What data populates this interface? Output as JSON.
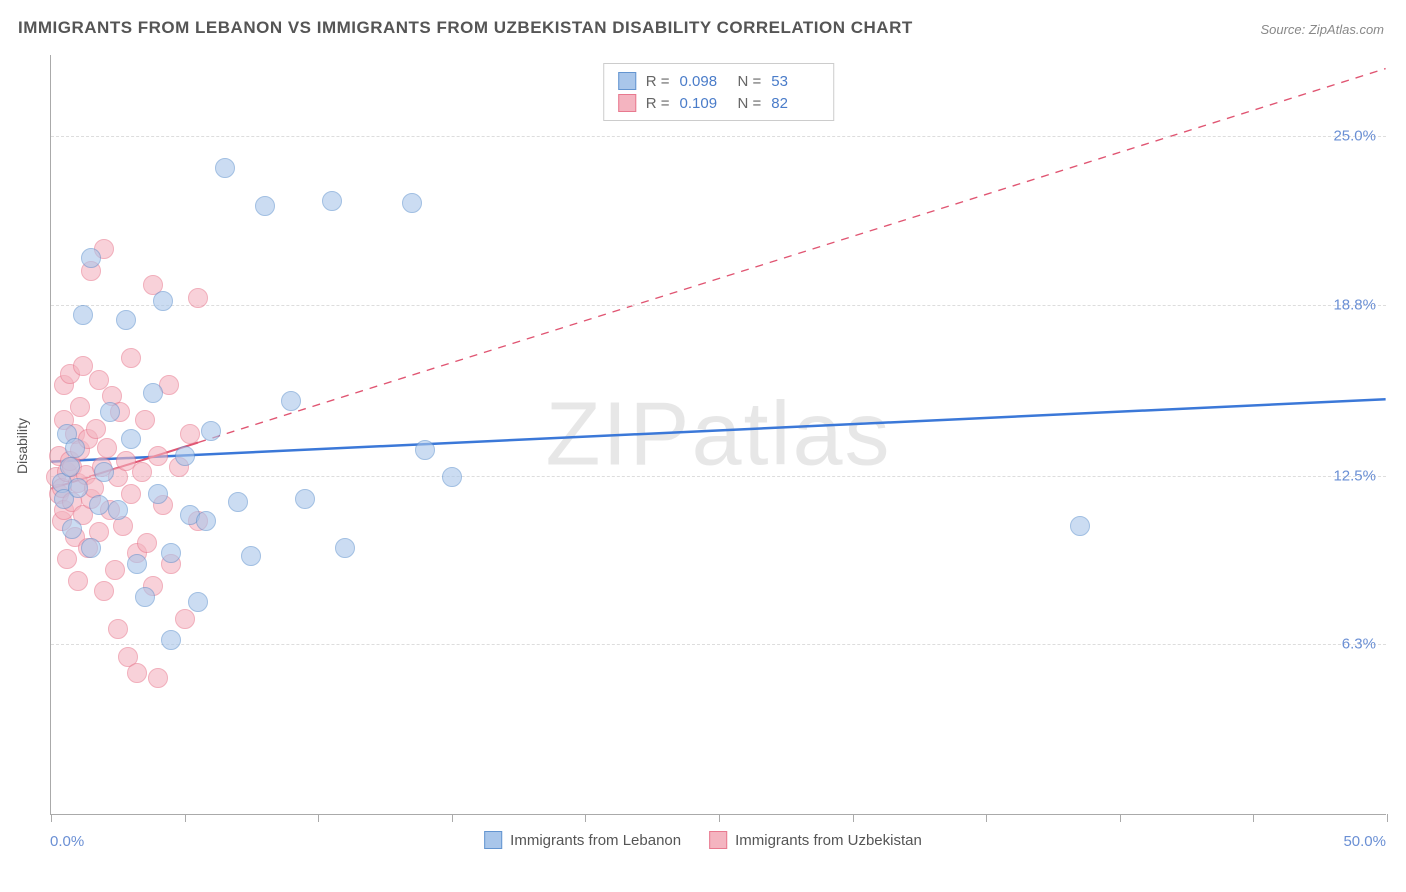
{
  "title": "IMMIGRANTS FROM LEBANON VS IMMIGRANTS FROM UZBEKISTAN DISABILITY CORRELATION CHART",
  "source": "Source: ZipAtlas.com",
  "watermark": "ZIPatlas",
  "y_axis_label": "Disability",
  "chart": {
    "type": "scatter-correlation",
    "xlim": [
      0,
      50
    ],
    "ylim": [
      0,
      28
    ],
    "x_tick_positions": [
      0,
      5,
      10,
      15,
      20,
      25,
      30,
      35,
      40,
      45,
      50
    ],
    "x_range_labels": {
      "min": "0.0%",
      "max": "50.0%"
    },
    "y_gridlines": [
      {
        "value": 6.3,
        "label": "6.3%"
      },
      {
        "value": 12.5,
        "label": "12.5%"
      },
      {
        "value": 18.8,
        "label": "18.8%"
      },
      {
        "value": 25.0,
        "label": "25.0%"
      }
    ],
    "marker_radius": 10,
    "background_color": "#ffffff",
    "grid_color": "#dddddd",
    "axis_color": "#aaaaaa",
    "series": [
      {
        "name": "Immigrants from Lebanon",
        "fill": "#a9c6ea",
        "stroke": "#6495d0",
        "fill_opacity": 0.6,
        "trend": {
          "x1": 0,
          "y1": 13.0,
          "x2": 50,
          "y2": 15.3,
          "solid_until_x": 50,
          "stroke": "#3b78d8",
          "width": 2.5
        },
        "R": "0.098",
        "N": "53",
        "points": [
          [
            0.4,
            12.2
          ],
          [
            0.5,
            11.6
          ],
          [
            0.6,
            14.0
          ],
          [
            0.7,
            12.8
          ],
          [
            0.8,
            10.5
          ],
          [
            0.9,
            13.5
          ],
          [
            1.0,
            12.0
          ],
          [
            1.2,
            18.4
          ],
          [
            1.5,
            20.5
          ],
          [
            1.5,
            9.8
          ],
          [
            1.8,
            11.4
          ],
          [
            2.0,
            12.6
          ],
          [
            2.2,
            14.8
          ],
          [
            2.5,
            11.2
          ],
          [
            2.8,
            18.2
          ],
          [
            3.0,
            13.8
          ],
          [
            3.2,
            9.2
          ],
          [
            3.5,
            8.0
          ],
          [
            3.8,
            15.5
          ],
          [
            4.0,
            11.8
          ],
          [
            4.2,
            18.9
          ],
          [
            4.5,
            9.6
          ],
          [
            4.5,
            6.4
          ],
          [
            5.0,
            13.2
          ],
          [
            5.2,
            11.0
          ],
          [
            5.5,
            7.8
          ],
          [
            5.8,
            10.8
          ],
          [
            6.0,
            14.1
          ],
          [
            6.5,
            23.8
          ],
          [
            7.0,
            11.5
          ],
          [
            7.5,
            9.5
          ],
          [
            8.0,
            22.4
          ],
          [
            9.0,
            15.2
          ],
          [
            9.5,
            11.6
          ],
          [
            10.5,
            22.6
          ],
          [
            11.0,
            9.8
          ],
          [
            13.5,
            22.5
          ],
          [
            14.0,
            13.4
          ],
          [
            15.0,
            12.4
          ],
          [
            38.5,
            10.6
          ]
        ]
      },
      {
        "name": "Immigrants from Uzbekistan",
        "fill": "#f4b4c0",
        "stroke": "#e8798f",
        "fill_opacity": 0.6,
        "trend": {
          "x1": 0,
          "y1": 12.0,
          "x2": 50,
          "y2": 27.5,
          "solid_until_x": 5.5,
          "stroke": "#e05572",
          "width": 2
        },
        "R": "0.109",
        "N": "82",
        "points": [
          [
            0.2,
            12.4
          ],
          [
            0.3,
            11.8
          ],
          [
            0.3,
            13.2
          ],
          [
            0.4,
            12.0
          ],
          [
            0.4,
            10.8
          ],
          [
            0.5,
            14.5
          ],
          [
            0.5,
            11.2
          ],
          [
            0.5,
            15.8
          ],
          [
            0.6,
            12.6
          ],
          [
            0.6,
            9.4
          ],
          [
            0.7,
            13.0
          ],
          [
            0.7,
            16.2
          ],
          [
            0.8,
            11.5
          ],
          [
            0.8,
            12.8
          ],
          [
            0.9,
            10.2
          ],
          [
            0.9,
            14.0
          ],
          [
            1.0,
            12.2
          ],
          [
            1.0,
            8.6
          ],
          [
            1.1,
            13.4
          ],
          [
            1.1,
            15.0
          ],
          [
            1.2,
            11.0
          ],
          [
            1.2,
            16.5
          ],
          [
            1.3,
            12.5
          ],
          [
            1.4,
            9.8
          ],
          [
            1.4,
            13.8
          ],
          [
            1.5,
            11.6
          ],
          [
            1.5,
            20.0
          ],
          [
            1.6,
            12.0
          ],
          [
            1.7,
            14.2
          ],
          [
            1.8,
            10.4
          ],
          [
            1.8,
            16.0
          ],
          [
            1.9,
            12.8
          ],
          [
            2.0,
            8.2
          ],
          [
            2.0,
            20.8
          ],
          [
            2.1,
            13.5
          ],
          [
            2.2,
            11.2
          ],
          [
            2.3,
            15.4
          ],
          [
            2.4,
            9.0
          ],
          [
            2.5,
            12.4
          ],
          [
            2.5,
            6.8
          ],
          [
            2.6,
            14.8
          ],
          [
            2.7,
            10.6
          ],
          [
            2.8,
            13.0
          ],
          [
            2.9,
            5.8
          ],
          [
            3.0,
            11.8
          ],
          [
            3.0,
            16.8
          ],
          [
            3.2,
            9.6
          ],
          [
            3.2,
            5.2
          ],
          [
            3.4,
            12.6
          ],
          [
            3.5,
            14.5
          ],
          [
            3.6,
            10.0
          ],
          [
            3.8,
            8.4
          ],
          [
            3.8,
            19.5
          ],
          [
            4.0,
            13.2
          ],
          [
            4.0,
            5.0
          ],
          [
            4.2,
            11.4
          ],
          [
            4.4,
            15.8
          ],
          [
            4.5,
            9.2
          ],
          [
            4.8,
            12.8
          ],
          [
            5.0,
            7.2
          ],
          [
            5.2,
            14.0
          ],
          [
            5.5,
            10.8
          ],
          [
            5.5,
            19.0
          ]
        ]
      }
    ]
  },
  "legend_top": {
    "rows": [
      {
        "swatch_fill": "#a9c6ea",
        "swatch_stroke": "#6495d0",
        "r_label": "R =",
        "r_val": "0.098",
        "n_label": "N =",
        "n_val": "53"
      },
      {
        "swatch_fill": "#f4b4c0",
        "swatch_stroke": "#e8798f",
        "r_label": "R =",
        "r_val": "0.109",
        "n_label": "N =",
        "n_val": "82"
      }
    ]
  },
  "legend_bottom": {
    "items": [
      {
        "swatch_fill": "#a9c6ea",
        "swatch_stroke": "#6495d0",
        "label": "Immigrants from Lebanon"
      },
      {
        "swatch_fill": "#f4b4c0",
        "swatch_stroke": "#e8798f",
        "label": "Immigrants from Uzbekistan"
      }
    ]
  }
}
